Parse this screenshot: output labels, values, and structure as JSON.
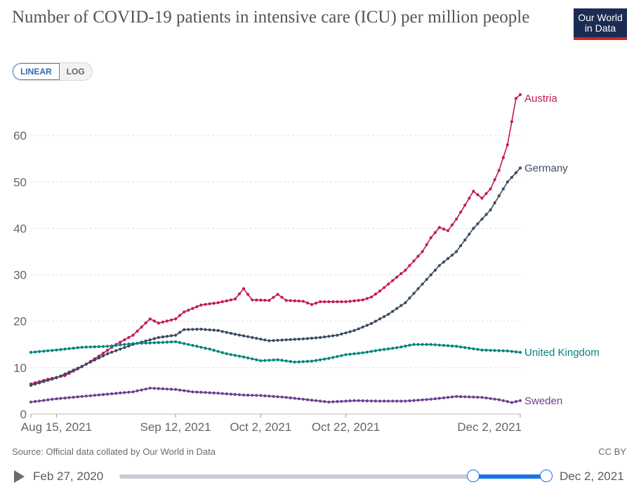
{
  "header": {
    "title": "Number of COVID-19 patients in intensive care (ICU) per million people",
    "logo_line1": "Our World",
    "logo_line2": "in Data"
  },
  "controls": {
    "linear_label": "LINEAR",
    "log_label": "LOG",
    "active_scale": "linear"
  },
  "footer": {
    "source": "Source: Official data collated by Our World in Data",
    "license": "CC BY"
  },
  "timeline": {
    "start_label": "Feb 27, 2020",
    "end_label": "Dec 2, 2021",
    "selected_start": "2021-08-09",
    "selected_end": "2021-12-02"
  },
  "chart_data": {
    "type": "line",
    "title": "Number of COVID-19 patients in intensive care (ICU) per million people",
    "xlabel": "",
    "ylabel": "",
    "x_range": [
      "2021-08-09",
      "2021-12-02"
    ],
    "ylim": [
      0,
      70
    ],
    "y_ticks": [
      0,
      10,
      20,
      30,
      40,
      50,
      60
    ],
    "x_ticks": [
      {
        "date": "2021-08-15",
        "label": "Aug 15, 2021"
      },
      {
        "date": "2021-09-12",
        "label": "Sep 12, 2021"
      },
      {
        "date": "2021-10-02",
        "label": "Oct 2, 2021"
      },
      {
        "date": "2021-10-22",
        "label": "Oct 22, 2021"
      },
      {
        "date": "2021-12-02",
        "label": "Dec 2, 2021"
      }
    ],
    "grid": "horizontal dashed",
    "legend": "right, labels at line ends",
    "series": [
      {
        "name": "Austria",
        "color": "#c2185b",
        "points": [
          [
            "2021-08-09",
            6.5
          ],
          [
            "2021-08-13",
            7.5
          ],
          [
            "2021-08-17",
            8.3
          ],
          [
            "2021-08-21",
            10.2
          ],
          [
            "2021-08-25",
            12.5
          ],
          [
            "2021-08-29",
            15.0
          ],
          [
            "2021-09-02",
            17.0
          ],
          [
            "2021-09-06",
            20.5
          ],
          [
            "2021-09-08",
            19.6
          ],
          [
            "2021-09-12",
            20.5
          ],
          [
            "2021-09-14",
            22.0
          ],
          [
            "2021-09-18",
            23.5
          ],
          [
            "2021-09-22",
            24.0
          ],
          [
            "2021-09-26",
            24.8
          ],
          [
            "2021-09-28",
            27.0
          ],
          [
            "2021-09-30",
            24.6
          ],
          [
            "2021-10-04",
            24.5
          ],
          [
            "2021-10-06",
            25.8
          ],
          [
            "2021-10-08",
            24.5
          ],
          [
            "2021-10-12",
            24.3
          ],
          [
            "2021-10-14",
            23.6
          ],
          [
            "2021-10-16",
            24.2
          ],
          [
            "2021-10-22",
            24.2
          ],
          [
            "2021-10-26",
            24.6
          ],
          [
            "2021-10-28",
            25.2
          ],
          [
            "2021-10-30",
            26.5
          ],
          [
            "2021-11-01",
            28.0
          ],
          [
            "2021-11-05",
            31.0
          ],
          [
            "2021-11-09",
            35.0
          ],
          [
            "2021-11-11",
            38.0
          ],
          [
            "2021-11-13",
            40.2
          ],
          [
            "2021-11-15",
            39.5
          ],
          [
            "2021-11-17",
            42.0
          ],
          [
            "2021-11-19",
            45.0
          ],
          [
            "2021-11-21",
            48.0
          ],
          [
            "2021-11-23",
            46.5
          ],
          [
            "2021-11-25",
            48.5
          ],
          [
            "2021-11-27",
            52.5
          ],
          [
            "2021-11-29",
            58.0
          ],
          [
            "2021-11-30",
            63.0
          ],
          [
            "2021-12-01",
            68.0
          ],
          [
            "2021-12-02",
            68.8
          ]
        ]
      },
      {
        "name": "Germany",
        "color": "#3b4a62",
        "points": [
          [
            "2021-08-09",
            6.2
          ],
          [
            "2021-08-15",
            7.8
          ],
          [
            "2021-08-21",
            10.3
          ],
          [
            "2021-08-27",
            13.0
          ],
          [
            "2021-09-02",
            15.0
          ],
          [
            "2021-09-08",
            16.5
          ],
          [
            "2021-09-12",
            17.0
          ],
          [
            "2021-09-14",
            18.2
          ],
          [
            "2021-09-18",
            18.3
          ],
          [
            "2021-09-22",
            18.0
          ],
          [
            "2021-09-26",
            17.2
          ],
          [
            "2021-09-30",
            16.5
          ],
          [
            "2021-10-04",
            15.8
          ],
          [
            "2021-10-08",
            16.0
          ],
          [
            "2021-10-12",
            16.2
          ],
          [
            "2021-10-16",
            16.5
          ],
          [
            "2021-10-20",
            17.0
          ],
          [
            "2021-10-24",
            18.0
          ],
          [
            "2021-10-28",
            19.5
          ],
          [
            "2021-11-01",
            21.5
          ],
          [
            "2021-11-05",
            24.0
          ],
          [
            "2021-11-09",
            28.0
          ],
          [
            "2021-11-13",
            32.0
          ],
          [
            "2021-11-17",
            35.0
          ],
          [
            "2021-11-21",
            40.0
          ],
          [
            "2021-11-25",
            44.0
          ],
          [
            "2021-11-29",
            50.0
          ],
          [
            "2021-12-02",
            53.0
          ]
        ]
      },
      {
        "name": "United Kingdom",
        "color": "#00847e",
        "points": [
          [
            "2021-08-09",
            13.3
          ],
          [
            "2021-08-15",
            13.8
          ],
          [
            "2021-08-21",
            14.4
          ],
          [
            "2021-08-27",
            14.6
          ],
          [
            "2021-09-02",
            15.2
          ],
          [
            "2021-09-08",
            15.4
          ],
          [
            "2021-09-12",
            15.6
          ],
          [
            "2021-09-16",
            14.8
          ],
          [
            "2021-09-20",
            14.0
          ],
          [
            "2021-09-24",
            13.0
          ],
          [
            "2021-09-28",
            12.3
          ],
          [
            "2021-10-02",
            11.5
          ],
          [
            "2021-10-06",
            11.7
          ],
          [
            "2021-10-10",
            11.2
          ],
          [
            "2021-10-14",
            11.4
          ],
          [
            "2021-10-18",
            12.0
          ],
          [
            "2021-10-22",
            12.8
          ],
          [
            "2021-10-26",
            13.2
          ],
          [
            "2021-10-30",
            13.8
          ],
          [
            "2021-11-03",
            14.3
          ],
          [
            "2021-11-07",
            15.0
          ],
          [
            "2021-11-11",
            15.0
          ],
          [
            "2021-11-17",
            14.6
          ],
          [
            "2021-11-23",
            13.8
          ],
          [
            "2021-11-29",
            13.6
          ],
          [
            "2021-12-02",
            13.3
          ]
        ]
      },
      {
        "name": "Sweden",
        "color": "#6d3e91",
        "points": [
          [
            "2021-08-09",
            2.6
          ],
          [
            "2021-08-15",
            3.3
          ],
          [
            "2021-08-21",
            3.8
          ],
          [
            "2021-08-27",
            4.3
          ],
          [
            "2021-09-02",
            4.8
          ],
          [
            "2021-09-06",
            5.6
          ],
          [
            "2021-09-12",
            5.3
          ],
          [
            "2021-09-16",
            4.8
          ],
          [
            "2021-09-22",
            4.5
          ],
          [
            "2021-09-28",
            4.1
          ],
          [
            "2021-10-02",
            4.0
          ],
          [
            "2021-10-08",
            3.6
          ],
          [
            "2021-10-14",
            3.0
          ],
          [
            "2021-10-18",
            2.6
          ],
          [
            "2021-10-24",
            2.9
          ],
          [
            "2021-10-30",
            2.8
          ],
          [
            "2021-11-05",
            2.8
          ],
          [
            "2021-11-11",
            3.2
          ],
          [
            "2021-11-17",
            3.8
          ],
          [
            "2021-11-23",
            3.6
          ],
          [
            "2021-11-27",
            3.1
          ],
          [
            "2021-11-30",
            2.5
          ],
          [
            "2021-12-02",
            2.9
          ]
        ]
      }
    ]
  }
}
